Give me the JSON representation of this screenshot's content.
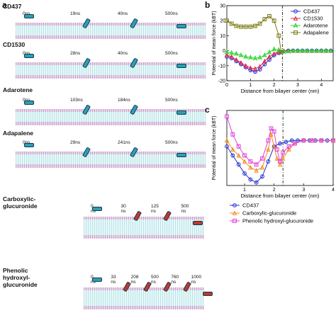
{
  "panel_a": {
    "letter": "a",
    "rows": [
      {
        "label": "CD437",
        "times": [
          "0ns",
          "19ns",
          "40ns",
          "500ns"
        ]
      },
      {
        "label": "CD1530",
        "times": [
          "0ns",
          "28ns",
          "40ns",
          "500ns"
        ]
      },
      {
        "label": "Adarotene",
        "times": [
          "0ns",
          "103ns",
          "184ns",
          "500ns"
        ]
      },
      {
        "label": "Adapalene",
        "times": [
          "0ns",
          "29ns",
          "241ns",
          "500ns"
        ]
      },
      {
        "label": "Carboxylic-glucuronide",
        "times": [
          "0 ns",
          "30 ns",
          "125 ns",
          "500 ns"
        ]
      },
      {
        "label": "Phenolic hydroxyl-glucuronide",
        "times": [
          "0 ns",
          "33 ns",
          "208 ns",
          "500 ns",
          "760 ns",
          "1000 ns"
        ]
      }
    ]
  },
  "panel_b_letter": "b",
  "panel_c_letter": "c",
  "colors": {
    "CD437": "#1f2fd0",
    "CD1530": "#e0204a",
    "Adarotene": "#2fd42f",
    "Adapalene": "#7a7a12",
    "Carboxylic-glucuronide": "#f08c1c",
    "Phenolic": "#e03fd8"
  },
  "chart_data": [
    {
      "type": "line",
      "xlabel": "Distance from bilayer center (nm)",
      "ylabel": "Potential of mean force (kBT)",
      "xlim": [
        0,
        4.5
      ],
      "ylim": [
        -20,
        30
      ],
      "xticks": [
        "0",
        "1",
        "2",
        "3",
        "4"
      ],
      "yticks": [
        "-20",
        "-10",
        "0",
        "10",
        "20",
        "30"
      ],
      "vline_x": 2.35,
      "legend": "top-right",
      "series": [
        {
          "name": "CD437",
          "color_key": "CD437",
          "marker": "circle",
          "x": [
            0.0,
            0.2,
            0.4,
            0.6,
            0.8,
            1.0,
            1.2,
            1.4,
            1.6,
            1.8,
            2.0,
            2.2,
            2.4,
            2.6,
            2.8,
            3.0,
            3.2,
            3.4,
            3.6,
            3.8,
            4.0,
            4.2,
            4.4
          ],
          "y": [
            -4,
            -5,
            -7,
            -9,
            -11,
            -13,
            -14,
            -12.5,
            -9,
            -6,
            -3,
            -1.5,
            -0.5,
            0,
            0,
            0,
            0,
            0,
            0,
            0,
            0,
            0,
            0
          ]
        },
        {
          "name": "CD1530",
          "color_key": "CD1530",
          "marker": "triangle",
          "x": [
            0.0,
            0.2,
            0.4,
            0.6,
            0.8,
            1.0,
            1.2,
            1.4,
            1.6,
            1.8,
            2.0,
            2.2,
            2.4,
            2.6,
            2.8,
            3.0,
            3.2,
            3.4,
            3.6,
            3.8,
            4.0,
            4.2,
            4.4
          ],
          "y": [
            -3,
            -4,
            -6,
            -8,
            -10,
            -11.5,
            -12,
            -10.5,
            -7,
            -4,
            -2,
            -0.5,
            0,
            0,
            0,
            0,
            0,
            0,
            0,
            0,
            0,
            0,
            0
          ]
        },
        {
          "name": "Adarotene",
          "color_key": "Adarotene",
          "marker": "star",
          "x": [
            0.0,
            0.2,
            0.4,
            0.6,
            0.8,
            1.0,
            1.2,
            1.4,
            1.6,
            1.8,
            2.0,
            2.2,
            2.4,
            2.6,
            2.8,
            3.0,
            3.2,
            3.4,
            3.6,
            3.8,
            4.0,
            4.2,
            4.4
          ],
          "y": [
            -1,
            -1.5,
            -2,
            -3,
            -4,
            -4.5,
            -5,
            -4.5,
            -3,
            -1,
            1,
            0.5,
            -0.5,
            -0.5,
            0,
            0,
            0,
            0,
            0,
            0,
            0,
            0,
            0
          ]
        },
        {
          "name": "Adapalene",
          "color_key": "Adapalene",
          "marker": "square",
          "x": [
            0.0,
            0.2,
            0.4,
            0.6,
            0.8,
            1.0,
            1.2,
            1.4,
            1.6,
            1.8,
            2.0,
            2.2,
            2.3
          ],
          "y": [
            20,
            18,
            16.5,
            16,
            16,
            16,
            16.5,
            18,
            21,
            23,
            20,
            10,
            -1
          ]
        }
      ]
    },
    {
      "type": "line",
      "xlabel": "Distance from bilayer center (nm)",
      "ylabel": "Potential of mean force (kBT)",
      "xlim": [
        0.4,
        4.0
      ],
      "ylim": [
        -15,
        10
      ],
      "xticks": [
        "1",
        "2",
        "3",
        "4"
      ],
      "vline_x": 2.3,
      "legend": "below",
      "series": [
        {
          "name": "CD437",
          "color_key": "CD437",
          "marker": "circle",
          "x": [
            0.4,
            0.6,
            0.8,
            1.0,
            1.2,
            1.4,
            1.6,
            1.8,
            2.0,
            2.2,
            2.4,
            2.6,
            2.8,
            3.0,
            3.2,
            3.4,
            3.6,
            3.8,
            4.0
          ],
          "y": [
            -2,
            -5,
            -8,
            -11,
            -13,
            -14,
            -12,
            -7,
            -2,
            -1,
            -0.5,
            0,
            0,
            0,
            0,
            0,
            0,
            0,
            0
          ]
        },
        {
          "name": "Carboxylic-glucuronide",
          "color_key": "Carboxylic-glucuronide",
          "marker": "triangle",
          "x": [
            0.4,
            0.6,
            0.8,
            1.0,
            1.2,
            1.4,
            1.6,
            1.8,
            1.9,
            2.0,
            2.1,
            2.2,
            2.3,
            2.5,
            2.7,
            3.0,
            3.3,
            3.6,
            4.0
          ],
          "y": [
            0,
            -3,
            -5,
            -7,
            -9,
            -10,
            -9,
            -3,
            2,
            -2,
            -6,
            -8,
            -6,
            -3,
            -1,
            0,
            0,
            0,
            0
          ]
        },
        {
          "name": "Phenolic hydroxyl-glucuronide",
          "color_key": "Phenolic",
          "marker": "square",
          "x": [
            0.4,
            0.6,
            0.8,
            1.0,
            1.2,
            1.4,
            1.6,
            1.8,
            1.9,
            2.0,
            2.1,
            2.2,
            2.3,
            2.5,
            2.7,
            3.0,
            3.3,
            3.6,
            4.0
          ],
          "y": [
            8,
            2,
            -2,
            -5,
            -7,
            -8,
            -6,
            0,
            4,
            3,
            -3,
            -7,
            -4,
            -2,
            -1,
            0,
            0,
            0,
            0
          ]
        }
      ]
    }
  ]
}
